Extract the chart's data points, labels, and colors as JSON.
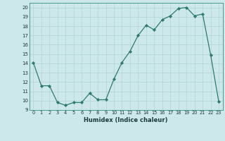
{
  "x": [
    0,
    1,
    2,
    3,
    4,
    5,
    6,
    7,
    8,
    9,
    10,
    11,
    12,
    13,
    14,
    15,
    16,
    17,
    18,
    19,
    20,
    21,
    22,
    23
  ],
  "y": [
    14.1,
    11.6,
    11.6,
    9.8,
    9.5,
    9.8,
    9.8,
    10.8,
    10.1,
    10.1,
    12.3,
    14.1,
    15.3,
    17.0,
    18.1,
    17.6,
    18.7,
    19.1,
    19.9,
    20.0,
    19.1,
    19.3,
    14.9,
    9.9
  ],
  "line_color": "#2d7a6e",
  "marker_color": "#2d7a6e",
  "bg_color": "#cce8ea",
  "grid_color": "#b0d4d6",
  "xlabel": "Humidex (Indice chaleur)",
  "xlim": [
    -0.5,
    23.5
  ],
  "ylim": [
    9,
    20.5
  ],
  "yticks": [
    9,
    10,
    11,
    12,
    13,
    14,
    15,
    16,
    17,
    18,
    19,
    20
  ],
  "xticks": [
    0,
    1,
    2,
    3,
    4,
    5,
    6,
    7,
    8,
    9,
    10,
    11,
    12,
    13,
    14,
    15,
    16,
    17,
    18,
    19,
    20,
    21,
    22,
    23
  ]
}
